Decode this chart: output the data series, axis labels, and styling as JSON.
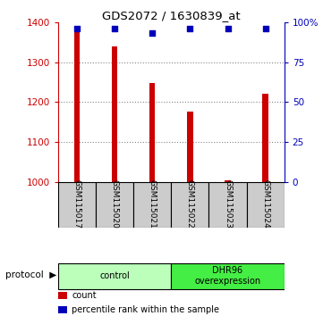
{
  "title": "GDS2072 / 1630839_at",
  "samples": [
    "GSM115017",
    "GSM115020",
    "GSM115021",
    "GSM115022",
    "GSM115023",
    "GSM115024"
  ],
  "counts": [
    1375,
    1340,
    1248,
    1175,
    1005,
    1220
  ],
  "percentile_ranks": [
    96,
    96,
    93,
    96,
    96,
    96
  ],
  "ylim_left": [
    1000,
    1400
  ],
  "ylim_right": [
    0,
    100
  ],
  "yticks_left": [
    1000,
    1100,
    1200,
    1300,
    1400
  ],
  "yticks_right": [
    0,
    25,
    50,
    75,
    100
  ],
  "ytick_labels_right": [
    "0",
    "25",
    "50",
    "75",
    "100%"
  ],
  "bar_color": "#cc0000",
  "dot_color": "#0000bb",
  "bar_width": 0.15,
  "groups": [
    {
      "label": "control",
      "indices": [
        0,
        1,
        2
      ],
      "color": "#bbffbb"
    },
    {
      "label": "DHR96\noverexpression",
      "indices": [
        3,
        4,
        5
      ],
      "color": "#44ee44"
    }
  ],
  "protocol_label": "protocol",
  "legend_items": [
    {
      "label": "count",
      "color": "#cc0000"
    },
    {
      "label": "percentile rank within the sample",
      "color": "#0000bb"
    }
  ],
  "background_color": "#ffffff",
  "sample_box_color": "#cccccc",
  "grid_color": "#888888"
}
